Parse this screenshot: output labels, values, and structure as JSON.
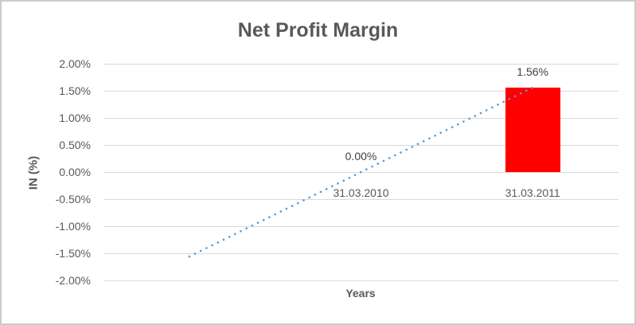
{
  "window": {
    "background": "#FFFFFF",
    "border_color": "#CBCBCB"
  },
  "chart_data": {
    "type": "bar",
    "title": "Net Profit Margin",
    "xlabel": "Years",
    "ylabel": "IN (%)",
    "categories": [
      "",
      "31.03.2010",
      "31.03.2011"
    ],
    "series": [
      {
        "name": "Net Profit Margin",
        "values": [
          null,
          0.0,
          1.56
        ]
      }
    ],
    "data_labels": [
      "",
      "0.00%",
      "1.56%"
    ],
    "ylim": [
      -2.0,
      2.0
    ],
    "ytick_step": 0.5,
    "ytick_labels": [
      "2.00%",
      "1.50%",
      "1.00%",
      "0.50%",
      "0.00%",
      "-0.50%",
      "-1.00%",
      "-1.50%",
      "-2.00%"
    ],
    "grid": true,
    "legend": "none",
    "bar_color": "#FF0000",
    "text_color": "#595959",
    "gridline_color": "#D9D9D9",
    "trendline": {
      "type": "linear",
      "style": "dotted",
      "color": "#5B9BD5",
      "points": [
        {
          "slot": 0,
          "value": -1.56
        },
        {
          "slot": 2,
          "value": 1.56
        }
      ]
    }
  }
}
